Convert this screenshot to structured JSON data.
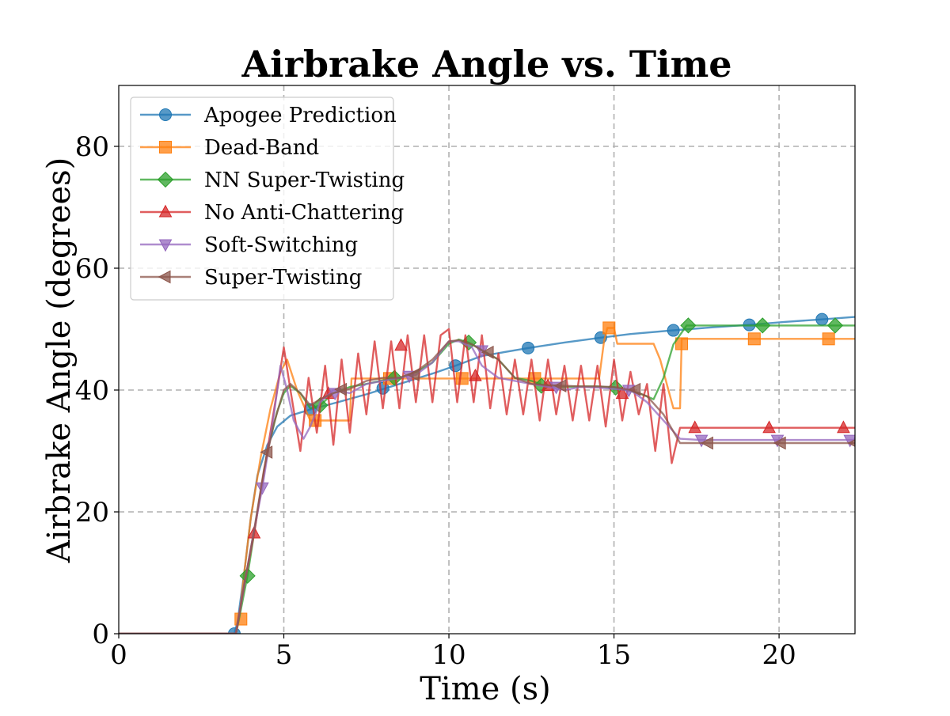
{
  "chart_data": {
    "type": "line",
    "title": "Airbrake Angle vs. Time",
    "xlabel": "Time (s)",
    "ylabel": "Airbrake Angle (degrees)",
    "xlim": [
      0,
      22.3
    ],
    "ylim": [
      0,
      90
    ],
    "xticks": [
      0,
      5,
      10,
      15,
      20
    ],
    "yticks": [
      0,
      20,
      40,
      60,
      80
    ],
    "xtick_labels": [
      "0",
      "5",
      "10",
      "15",
      "20"
    ],
    "ytick_labels": [
      "0",
      "20",
      "40",
      "60",
      "80"
    ],
    "grid": true,
    "legend_position": "upper-left",
    "series": [
      {
        "name": "Apogee Prediction",
        "color": "#1f77b4",
        "marker": "circle",
        "x": [
          0,
          3.5,
          3.6,
          3.8,
          4.0,
          4.2,
          4.5,
          4.8,
          5.2,
          5.8,
          6.5,
          7.5,
          8.5,
          9.5,
          10.2,
          11.0,
          12.4,
          13.5,
          14.6,
          15.5,
          16.8,
          18.0,
          19.1,
          20.2,
          21.3,
          22.3
        ],
        "y": [
          0,
          0,
          2,
          10,
          19,
          26,
          31,
          34,
          35.8,
          36.8,
          37.8,
          39.3,
          41,
          42.7,
          44,
          45.6,
          46.9,
          47.8,
          48.6,
          49.2,
          49.8,
          50.3,
          50.7,
          51.2,
          51.6,
          52
        ],
        "marker_x": [
          3.5,
          5.8,
          8.0,
          10.2,
          12.4,
          14.6,
          16.8,
          19.1,
          21.3
        ],
        "marker_y": [
          0,
          36.8,
          40.3,
          44,
          46.9,
          48.6,
          49.8,
          50.7,
          51.6
        ]
      },
      {
        "name": "Dead-Band",
        "color": "#ff7f0e",
        "marker": "square",
        "x": [
          0,
          3.55,
          3.65,
          3.8,
          4.0,
          4.3,
          4.6,
          4.9,
          5.1,
          5.4,
          5.8,
          7.0,
          7.05,
          7.4,
          10.4,
          14.55,
          14.7,
          14.8,
          15.0,
          15.1,
          16.2,
          16.4,
          16.8,
          17.0,
          17.05,
          22.3
        ],
        "y": [
          0,
          0,
          2.4,
          10,
          19,
          29,
          37,
          43,
          45,
          40,
          35,
          35,
          41.9,
          41.9,
          41.9,
          41.9,
          48,
          50.2,
          50.2,
          47.6,
          47.6,
          45,
          37,
          37,
          48.4,
          48.4
        ],
        "marker_x": [
          3.7,
          5.95,
          8.2,
          10.4,
          12.6,
          14.85,
          17.05,
          19.25,
          21.5
        ],
        "marker_y": [
          2.4,
          35,
          41.9,
          41.9,
          41.9,
          50.2,
          47.6,
          48.4,
          48.4
        ]
      },
      {
        "name": "NN Super-Twisting",
        "color": "#2ca02c",
        "marker": "diamond",
        "x": [
          0,
          3.55,
          3.7,
          3.9,
          4.2,
          4.5,
          4.8,
          5.0,
          5.2,
          5.5,
          5.8,
          6.1,
          6.5,
          7.0,
          7.5,
          8.0,
          8.5,
          9.0,
          9.5,
          10.0,
          10.3,
          10.6,
          11.0,
          11.5,
          12.0,
          12.5,
          12.9,
          13.5,
          14.0,
          14.5,
          15.0,
          15.5,
          15.8,
          16.2,
          16.5,
          16.8,
          17.2,
          17.5,
          22.3
        ],
        "y": [
          0,
          0,
          4,
          9.5,
          20,
          30,
          36.5,
          39.5,
          40.7,
          39.5,
          37,
          37.5,
          39.5,
          40.5,
          41,
          41.6,
          42,
          42.9,
          44.5,
          47.6,
          48.3,
          47.8,
          46.6,
          45,
          42,
          41.5,
          40.7,
          40.5,
          40.6,
          40.6,
          40.4,
          39.8,
          39.4,
          38.5,
          42,
          47.5,
          50.6,
          50.6,
          50.6
        ],
        "marker_x": [
          3.9,
          6.1,
          8.35,
          10.6,
          12.8,
          15.05,
          17.25,
          19.5,
          21.7
        ],
        "marker_y": [
          9.5,
          37.5,
          42,
          47.8,
          40.7,
          40.4,
          50.6,
          50.6,
          50.6
        ]
      },
      {
        "name": "No Anti-Chattering",
        "color": "#d62728",
        "marker": "triangle-up",
        "x": [
          0,
          3.55,
          3.8,
          4.1,
          4.5,
          4.8,
          5.0,
          5.2,
          5.5,
          5.75,
          6.0,
          6.25,
          6.5,
          6.75,
          7.0,
          7.25,
          7.5,
          7.75,
          8.0,
          8.25,
          8.5,
          8.75,
          9.0,
          9.25,
          9.5,
          9.75,
          10.0,
          10.25,
          10.5,
          10.75,
          11.0,
          11.25,
          11.5,
          11.75,
          12.0,
          12.25,
          12.5,
          12.75,
          13.0,
          13.25,
          13.5,
          13.75,
          14.0,
          14.25,
          14.5,
          14.75,
          15.0,
          15.25,
          15.5,
          15.75,
          16.0,
          16.25,
          16.5,
          16.75,
          17.0,
          17.2,
          22.3
        ],
        "y": [
          0,
          0,
          8,
          16.5,
          30,
          40,
          47,
          40,
          30,
          42,
          33,
          44,
          31,
          45,
          33,
          46,
          36,
          48,
          37,
          48,
          37,
          49,
          38,
          49,
          38,
          49,
          50,
          38,
          49,
          38,
          49,
          37,
          46,
          36,
          45,
          36,
          45,
          35,
          45,
          36,
          44,
          35,
          44,
          35,
          44,
          34,
          45,
          35,
          43,
          36,
          41,
          30,
          41,
          28,
          33.8,
          33.8,
          33.8
        ],
        "marker_x": [
          4.1,
          6.35,
          8.55,
          10.8,
          13.0,
          15.25,
          17.45,
          19.7,
          21.95
        ],
        "marker_y": [
          16.5,
          39.4,
          47.3,
          42.3,
          40.7,
          39.4,
          33.8,
          33.8,
          33.8
        ]
      },
      {
        "name": "Soft-Switching",
        "color": "#9467bd",
        "marker": "triangle-down",
        "x": [
          0,
          3.55,
          3.8,
          4.1,
          4.35,
          4.7,
          4.9,
          5.1,
          5.3,
          5.6,
          5.8,
          6.1,
          6.5,
          7.0,
          7.5,
          8.0,
          8.5,
          9.0,
          9.5,
          10.0,
          10.3,
          10.7,
          11.0,
          11.5,
          12.0,
          12.5,
          13.0,
          13.5,
          14.0,
          14.5,
          15.0,
          15.5,
          16.0,
          16.5,
          17.0,
          17.6,
          22.3
        ],
        "y": [
          0,
          0,
          8,
          17,
          24,
          36,
          44,
          40,
          35,
          32,
          34,
          38,
          40,
          39.5,
          41,
          41.5,
          42,
          42.5,
          44.5,
          48,
          48,
          47,
          44,
          42,
          41.5,
          41,
          40.5,
          40,
          40.5,
          40.4,
          40.2,
          40,
          38,
          35,
          32,
          31.8,
          31.8
        ],
        "marker_x": [
          4.35,
          6.55,
          8.8,
          11.0,
          13.25,
          15.45,
          17.65,
          19.95,
          22.15
        ],
        "marker_y": [
          24,
          39.5,
          42.3,
          46.5,
          40.5,
          40,
          31.8,
          31.8,
          31.8
        ]
      },
      {
        "name": "Super-Twisting",
        "color": "#8c564b",
        "marker": "triangle-left",
        "x": [
          0,
          3.55,
          3.8,
          4.1,
          4.4,
          4.7,
          5.0,
          5.2,
          5.5,
          5.8,
          6.1,
          6.5,
          7.0,
          7.5,
          8.0,
          8.5,
          9.0,
          9.5,
          10.0,
          10.3,
          10.7,
          11.0,
          11.5,
          12.0,
          12.5,
          13.0,
          13.5,
          14.0,
          14.5,
          15.0,
          15.5,
          16.0,
          16.5,
          17.0,
          17.8,
          22.3
        ],
        "y": [
          0,
          0,
          8,
          17,
          27,
          34.5,
          40,
          41,
          39.5,
          37.5,
          38.5,
          39.5,
          40.2,
          41.5,
          42,
          42,
          43,
          45,
          48,
          48.2,
          47.5,
          46.5,
          45,
          42,
          41,
          40.8,
          40.7,
          40.6,
          40.6,
          40.5,
          40,
          39,
          36,
          31.3,
          31.3,
          31.3
        ],
        "marker_x": [
          4.5,
          6.75,
          8.95,
          11.2,
          13.4,
          15.65,
          17.85,
          20.05,
          22.3
        ],
        "marker_y": [
          29.8,
          40.1,
          42.5,
          46.2,
          40.7,
          40.1,
          31.3,
          31.3,
          31.3
        ]
      }
    ]
  }
}
